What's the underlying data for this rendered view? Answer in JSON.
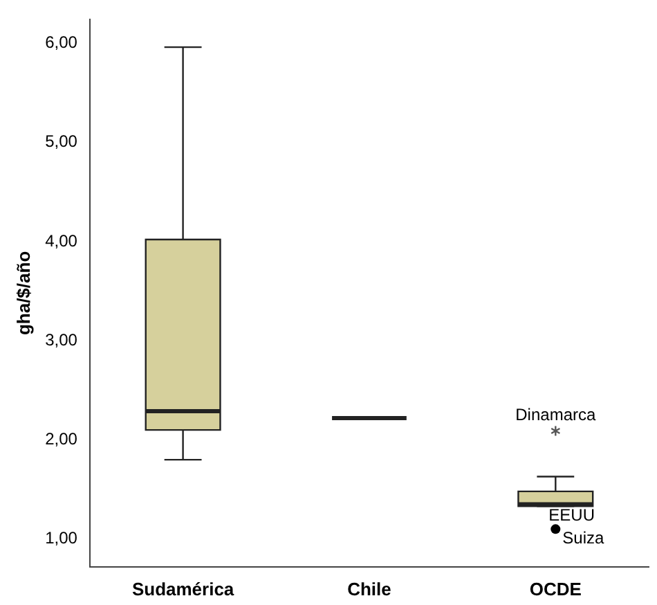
{
  "chart_data": {
    "type": "box",
    "ylabel": "gha/$/año",
    "categories": [
      "Sudamérica",
      "Chile",
      "OCDE"
    ],
    "colors": [
      "#d6d09c",
      "#222222",
      "#d6d09c"
    ],
    "boxes": [
      {
        "low": 1.8,
        "q1": 2.1,
        "median": 2.29,
        "q3": 4.02,
        "high": 5.96
      },
      {
        "low": 2.22,
        "q1": 2.22,
        "median": 2.22,
        "q3": 2.22,
        "high": 2.22
      },
      {
        "low": 1.33,
        "q1": 1.33,
        "median": 1.35,
        "q3": 1.48,
        "high": 1.63,
        "outliers": [
          2.09,
          1.1
        ]
      }
    ],
    "ylim": [
      0.72,
      6.24
    ],
    "yticks": [
      {
        "value": 1,
        "label": "1,00"
      },
      {
        "value": 2,
        "label": "2,00"
      },
      {
        "value": 3,
        "label": "3,00"
      },
      {
        "value": 4,
        "label": "4,00"
      },
      {
        "value": 5,
        "label": "5,00"
      },
      {
        "value": 6,
        "label": "6,00"
      }
    ],
    "grid": false,
    "annotations": [
      "Dinamarca",
      "EEUU",
      "Suiza"
    ]
  }
}
